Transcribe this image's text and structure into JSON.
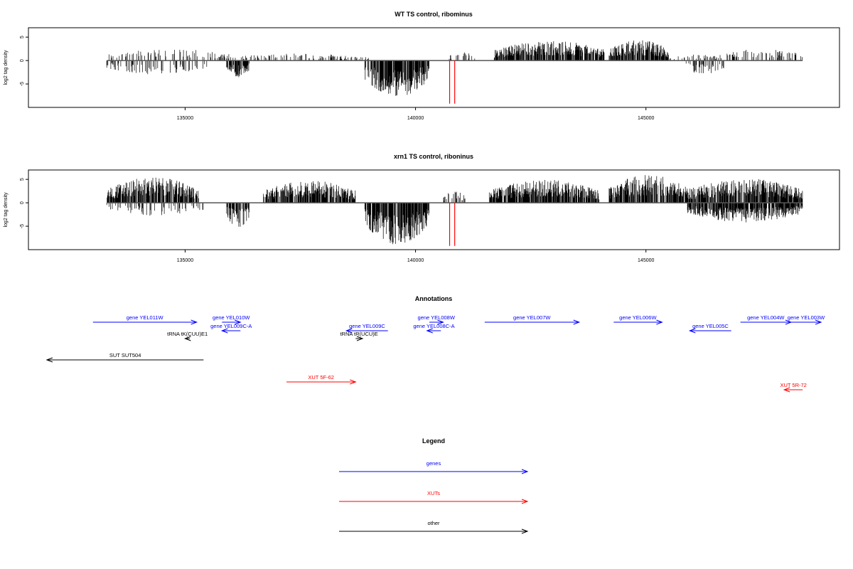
{
  "chart_data": [
    {
      "type": "bar",
      "title": "WT TS control, ribominus",
      "xlabel": "",
      "ylabel": "log2 tag density",
      "xlim": [
        131600,
        149200
      ],
      "ylim": [
        -10,
        7
      ],
      "x_ticks": [
        135000,
        140000,
        145000
      ],
      "y_ticks": [
        -5,
        0,
        5
      ],
      "baseline_range": [
        133300,
        148400
      ],
      "sense_signal_regions": [
        {
          "start": 133300,
          "end": 136000,
          "max": 2.5
        },
        {
          "start": 136000,
          "end": 139000,
          "max": 1.5
        },
        {
          "start": 140700,
          "end": 141300,
          "max": 1.8
        },
        {
          "start": 141700,
          "end": 144100,
          "max": 4.3
        },
        {
          "start": 144200,
          "end": 145500,
          "max": 4.5
        },
        {
          "start": 145500,
          "end": 146600,
          "max": 1.5
        },
        {
          "start": 146600,
          "end": 148400,
          "max": 2.5
        }
      ],
      "antisense_signal_regions": [
        {
          "start": 133300,
          "end": 135500,
          "min": -3.0
        },
        {
          "start": 135900,
          "end": 136400,
          "min": -3.8
        },
        {
          "start": 138900,
          "end": 140300,
          "min": -7.8
        },
        {
          "start": 145800,
          "end": 146700,
          "min": -3.0
        }
      ],
      "red_markers": [
        {
          "x": 140740,
          "y0": 0,
          "y1": -9.2
        },
        {
          "x": 140850,
          "y0": 0,
          "y1": -9.2
        }
      ]
    },
    {
      "type": "bar",
      "title": "xrn1 TS control, riboninus",
      "xlabel": "",
      "ylabel": "log2 tag density",
      "xlim": [
        131600,
        149200
      ],
      "ylim": [
        -10,
        7
      ],
      "x_ticks": [
        135000,
        140000,
        145000
      ],
      "y_ticks": [
        -5,
        0,
        5
      ],
      "baseline_range": [
        133300,
        148400
      ],
      "sense_signal_regions": [
        {
          "start": 133300,
          "end": 135300,
          "max": 5.5
        },
        {
          "start": 136700,
          "end": 138700,
          "max": 4.8
        },
        {
          "start": 140600,
          "end": 141100,
          "max": 2.5
        },
        {
          "start": 141600,
          "end": 144000,
          "max": 5.0
        },
        {
          "start": 144200,
          "end": 145900,
          "max": 6.0
        },
        {
          "start": 145900,
          "end": 148400,
          "max": 5.2
        }
      ],
      "antisense_signal_regions": [
        {
          "start": 133300,
          "end": 135400,
          "min": -2.8
        },
        {
          "start": 135900,
          "end": 136400,
          "min": -5.5
        },
        {
          "start": 138900,
          "end": 140300,
          "min": -9.0
        },
        {
          "start": 145900,
          "end": 148400,
          "min": -4.2
        }
      ],
      "red_markers": [
        {
          "x": 140740,
          "y0": 0,
          "y1": -9.2
        },
        {
          "x": 140850,
          "y0": 0,
          "y1": -9.2
        }
      ]
    }
  ],
  "annotations": {
    "title": "Annotations",
    "xlim": [
      131600,
      149200
    ],
    "tracks": [
      {
        "label": "gene YEL011W",
        "start": 133000,
        "end": 135250,
        "strand": "+",
        "row": 0,
        "kind": "genes"
      },
      {
        "label": "gene YEL010W",
        "start": 135800,
        "end": 136200,
        "strand": "+",
        "row": 0,
        "kind": "genes"
      },
      {
        "label": "gene YEL009C-A",
        "start": 135800,
        "end": 136200,
        "strand": "-",
        "row": 1,
        "kind": "genes"
      },
      {
        "label": "tRNA tK(CUU)E1",
        "start": 135000,
        "end": 135100,
        "strand": "-",
        "row": 2,
        "kind": "other"
      },
      {
        "label": "SUT SUT504",
        "start": 132000,
        "end": 135400,
        "strand": "-",
        "row": 3,
        "kind": "other"
      },
      {
        "label": "gene YEL009C",
        "start": 138500,
        "end": 139400,
        "strand": "-",
        "row": 1,
        "kind": "genes"
      },
      {
        "label": "tRNA tR(UCU)E",
        "start": 138700,
        "end": 138850,
        "strand": "+",
        "row": 2,
        "kind": "other"
      },
      {
        "label": "XUT 5F-62",
        "start": 137200,
        "end": 138700,
        "strand": "+",
        "row": 4,
        "kind": "XUTs"
      },
      {
        "label": "gene YEL008W",
        "start": 140300,
        "end": 140600,
        "strand": "+",
        "row": 0,
        "kind": "genes"
      },
      {
        "label": "gene YEL008C-A",
        "start": 140250,
        "end": 140550,
        "strand": "-",
        "row": 1,
        "kind": "genes"
      },
      {
        "label": "gene YEL007W",
        "start": 141500,
        "end": 143550,
        "strand": "+",
        "row": 0,
        "kind": "genes"
      },
      {
        "label": "gene YEL006W",
        "start": 144300,
        "end": 145350,
        "strand": "+",
        "row": 0,
        "kind": "genes"
      },
      {
        "label": "gene YEL005C",
        "start": 145950,
        "end": 146850,
        "strand": "-",
        "row": 1,
        "kind": "genes"
      },
      {
        "label": "gene YEL004W",
        "start": 147050,
        "end": 148150,
        "strand": "+",
        "row": 0,
        "kind": "genes"
      },
      {
        "label": "gene YEL003W",
        "start": 148150,
        "end": 148800,
        "strand": "+",
        "row": 0,
        "kind": "genes"
      },
      {
        "label": "XUT 5R-72",
        "start": 148000,
        "end": 148400,
        "strand": "-",
        "row": 5,
        "kind": "XUTs"
      }
    ]
  },
  "legend": {
    "title": "Legend",
    "items": [
      {
        "label": "genes",
        "color": "#0000ff"
      },
      {
        "label": "XUTs",
        "color": "#ff0000"
      },
      {
        "label": "other",
        "color": "#000000"
      }
    ]
  },
  "colors": {
    "genes": "#0000ff",
    "XUTs": "#ff0000",
    "other": "#000000",
    "signal": "#000000",
    "marker": "#ff0000",
    "frame": "#000000"
  }
}
